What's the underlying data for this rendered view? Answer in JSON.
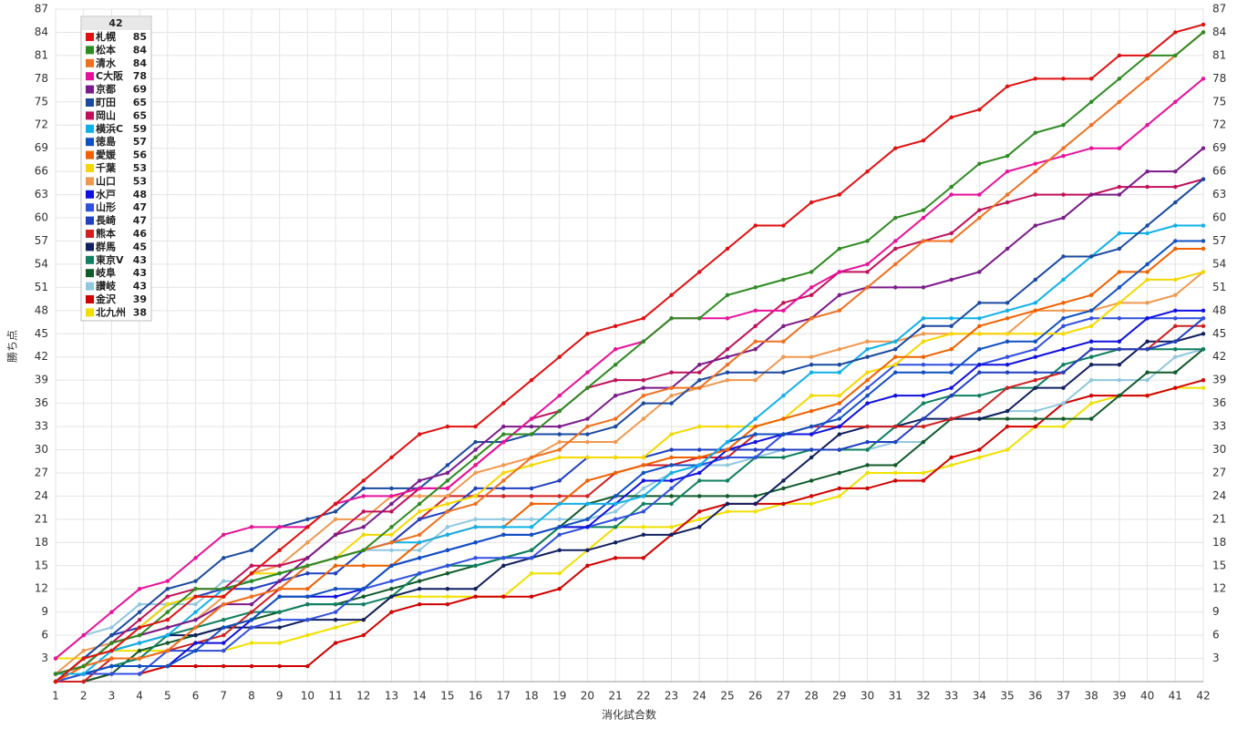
{
  "chart_data": {
    "type": "line",
    "x_label": "消化試合数",
    "y_label": "勝ち点",
    "legend_title": "42",
    "x": [
      1,
      2,
      3,
      4,
      5,
      6,
      7,
      8,
      9,
      10,
      11,
      12,
      13,
      14,
      15,
      16,
      17,
      18,
      19,
      20,
      21,
      22,
      23,
      24,
      25,
      26,
      27,
      28,
      29,
      30,
      31,
      32,
      33,
      34,
      35,
      36,
      37,
      38,
      39,
      40,
      41,
      42
    ],
    "xlim": [
      1,
      42
    ],
    "xticks": [
      1,
      2,
      3,
      4,
      5,
      6,
      7,
      8,
      9,
      10,
      11,
      12,
      13,
      14,
      15,
      16,
      17,
      18,
      19,
      20,
      21,
      22,
      23,
      24,
      25,
      26,
      27,
      28,
      29,
      30,
      31,
      32,
      33,
      34,
      35,
      36,
      37,
      38,
      39,
      40,
      41,
      42
    ],
    "ylim": [
      0,
      87
    ],
    "yticks": [
      3,
      6,
      9,
      12,
      15,
      18,
      21,
      24,
      27,
      30,
      33,
      36,
      39,
      42,
      45,
      48,
      51,
      54,
      57,
      60,
      63,
      66,
      69,
      72,
      75,
      78,
      81,
      84,
      87
    ],
    "grid": true,
    "series": [
      {
        "name": "札幌",
        "color": "#e01010",
        "values": [
          0,
          3,
          4,
          7,
          8,
          11,
          11,
          14,
          17,
          20,
          23,
          26,
          29,
          32,
          33,
          33,
          36,
          39,
          42,
          45,
          46,
          47,
          50,
          53,
          56,
          59,
          59,
          62,
          63,
          66,
          69,
          70,
          73,
          74,
          77,
          78,
          78,
          78,
          81,
          81,
          84,
          85
        ]
      },
      {
        "name": "松本",
        "color": "#2e8b22",
        "values": [
          1,
          2,
          5,
          6,
          9,
          12,
          12,
          13,
          14,
          15,
          16,
          17,
          20,
          23,
          26,
          29,
          32,
          32,
          35,
          38,
          41,
          44,
          47,
          47,
          50,
          51,
          52,
          53,
          56,
          57,
          60,
          61,
          64,
          67,
          68,
          71,
          72,
          75,
          78,
          81,
          81,
          84
        ]
      },
      {
        "name": "清水",
        "color": "#f07020",
        "values": [
          1,
          2,
          3,
          3,
          4,
          7,
          10,
          11,
          12,
          15,
          16,
          17,
          18,
          19,
          22,
          23,
          26,
          29,
          30,
          33,
          34,
          37,
          38,
          38,
          41,
          44,
          44,
          47,
          48,
          51,
          54,
          57,
          57,
          60,
          63,
          66,
          69,
          72,
          75,
          78,
          81,
          84
        ]
      },
      {
        "name": "C大阪",
        "color": "#e8109a",
        "values": [
          3,
          6,
          9,
          12,
          13,
          16,
          19,
          20,
          20,
          20,
          23,
          24,
          24,
          25,
          25,
          28,
          31,
          34,
          37,
          40,
          43,
          44,
          47,
          47,
          47,
          48,
          48,
          51,
          53,
          54,
          57,
          60,
          63,
          63,
          66,
          67,
          68,
          69,
          69,
          72,
          75,
          78
        ]
      },
      {
        "name": "京都",
        "color": "#7b1a8a",
        "values": [
          1,
          2,
          5,
          6,
          7,
          8,
          10,
          10,
          13,
          16,
          19,
          20,
          23,
          26,
          27,
          30,
          33,
          33,
          33,
          34,
          37,
          38,
          38,
          41,
          42,
          43,
          46,
          47,
          50,
          51,
          51,
          51,
          52,
          53,
          56,
          59,
          60,
          63,
          63,
          66,
          66,
          69
        ]
      },
      {
        "name": "町田",
        "color": "#1a4aa0",
        "values": [
          0,
          3,
          6,
          9,
          12,
          13,
          16,
          17,
          20,
          21,
          22,
          25,
          25,
          25,
          28,
          31,
          31,
          32,
          32,
          32,
          33,
          36,
          36,
          39,
          40,
          40,
          40,
          41,
          41,
          42,
          43,
          46,
          46,
          49,
          49,
          52,
          55,
          55,
          56,
          59,
          62,
          65
        ]
      },
      {
        "name": "岡山",
        "color": "#c0105a",
        "values": [
          1,
          2,
          5,
          8,
          11,
          12,
          12,
          15,
          15,
          16,
          19,
          22,
          22,
          25,
          25,
          28,
          31,
          34,
          35,
          38,
          39,
          39,
          40,
          40,
          43,
          46,
          49,
          50,
          53,
          53,
          56,
          57,
          58,
          61,
          62,
          63,
          63,
          63,
          64,
          64,
          64,
          65
        ]
      },
      {
        "name": "横浜C",
        "color": "#10b0e8",
        "values": [
          1,
          1,
          4,
          5,
          6,
          9,
          12,
          13,
          14,
          15,
          16,
          17,
          18,
          18,
          19,
          20,
          20,
          20,
          23,
          23,
          23,
          24,
          27,
          28,
          31,
          34,
          37,
          40,
          40,
          43,
          44,
          47,
          47,
          47,
          48,
          49,
          52,
          55,
          58,
          58,
          59,
          59
        ]
      },
      {
        "name": "徳島",
        "color": "#1050c0",
        "values": [
          1,
          1,
          2,
          2,
          2,
          4,
          7,
          8,
          11,
          11,
          12,
          12,
          15,
          16,
          17,
          18,
          19,
          19,
          20,
          21,
          24,
          27,
          28,
          28,
          31,
          32,
          32,
          33,
          34,
          37,
          40,
          40,
          40,
          43,
          44,
          44,
          47,
          48,
          51,
          54,
          57,
          57
        ]
      },
      {
        "name": "愛媛",
        "color": "#f06000",
        "values": [
          0,
          2,
          3,
          3,
          4,
          7,
          10,
          11,
          12,
          12,
          15,
          15,
          15,
          18,
          19,
          20,
          20,
          23,
          23,
          26,
          27,
          28,
          29,
          29,
          30,
          33,
          34,
          35,
          36,
          39,
          42,
          42,
          43,
          46,
          47,
          48,
          49,
          50,
          53,
          53,
          56,
          56
        ]
      },
      {
        "name": "千葉",
        "color": "#f5d800",
        "values": [
          0,
          3,
          4,
          7,
          10,
          11,
          11,
          14,
          14,
          15,
          16,
          19,
          19,
          22,
          23,
          24,
          27,
          28,
          29,
          29,
          29,
          29,
          32,
          33,
          33,
          33,
          34,
          37,
          37,
          40,
          41,
          44,
          45,
          45,
          45,
          45,
          45,
          46,
          49,
          52,
          52,
          53
        ]
      },
      {
        "name": "山口",
        "color": "#f09850",
        "values": [
          1,
          4,
          5,
          6,
          7,
          8,
          11,
          14,
          15,
          18,
          21,
          21,
          24,
          24,
          24,
          27,
          28,
          29,
          31,
          31,
          31,
          34,
          37,
          38,
          39,
          39,
          42,
          42,
          43,
          44,
          44,
          45,
          45,
          45,
          45,
          48,
          48,
          48,
          49,
          49,
          50,
          53
        ]
      },
      {
        "name": "水戸",
        "color": "#1010e0",
        "values": [
          1,
          1,
          2,
          2,
          2,
          5,
          5,
          8,
          11,
          11,
          11,
          12,
          15,
          16,
          17,
          18,
          19,
          19,
          20,
          20,
          23,
          26,
          26,
          27,
          30,
          31,
          32,
          32,
          33,
          36,
          37,
          37,
          38,
          41,
          41,
          42,
          43,
          44,
          44,
          47,
          48,
          48
        ]
      },
      {
        "name": "山形",
        "color": "#3050e0",
        "values": [
          0,
          1,
          1,
          1,
          4,
          4,
          4,
          7,
          8,
          8,
          9,
          12,
          13,
          14,
          15,
          16,
          16,
          16,
          19,
          20,
          21,
          22,
          25,
          28,
          29,
          29,
          32,
          32,
          35,
          38,
          41,
          41,
          41,
          41,
          42,
          43,
          46,
          47,
          47,
          47,
          47,
          47
        ]
      },
      {
        "name": "長崎",
        "color": "#2040c0",
        "values": [
          0,
          3,
          6,
          7,
          10,
          11,
          12,
          12,
          13,
          14,
          14,
          17,
          18,
          21,
          22,
          25,
          25,
          25,
          26,
          29,
          29,
          29,
          30,
          30,
          30,
          30,
          30,
          30,
          30,
          31,
          31,
          34,
          37,
          40,
          40,
          40,
          40,
          43,
          43,
          43,
          44,
          47
        ]
      },
      {
        "name": "熊本",
        "color": "#d02020",
        "values": [
          0,
          0,
          3,
          3,
          4,
          5,
          6,
          9,
          12,
          15,
          16,
          17,
          18,
          21,
          24,
          24,
          24,
          24,
          24,
          24,
          27,
          28,
          28,
          29,
          29,
          32,
          32,
          33,
          33,
          33,
          33,
          33,
          34,
          35,
          38,
          39,
          40,
          43,
          43,
          43,
          46,
          46
        ]
      },
      {
        "name": "群馬",
        "color": "#102060",
        "values": [
          0,
          3,
          4,
          5,
          6,
          6,
          7,
          7,
          7,
          8,
          8,
          8,
          11,
          12,
          12,
          12,
          15,
          16,
          17,
          17,
          18,
          19,
          19,
          20,
          23,
          23,
          26,
          29,
          32,
          33,
          33,
          34,
          34,
          34,
          35,
          38,
          38,
          41,
          41,
          44,
          44,
          45
        ]
      },
      {
        "name": "東京V",
        "color": "#108060",
        "values": [
          0,
          1,
          2,
          3,
          6,
          7,
          8,
          9,
          9,
          10,
          10,
          10,
          11,
          14,
          15,
          15,
          16,
          17,
          20,
          20,
          20,
          23,
          23,
          26,
          26,
          29,
          29,
          30,
          30,
          30,
          33,
          36,
          37,
          37,
          38,
          38,
          41,
          42,
          43,
          43,
          43,
          43
        ]
      },
      {
        "name": "岐阜",
        "color": "#105a2a",
        "values": [
          0,
          0,
          1,
          4,
          5,
          6,
          7,
          8,
          9,
          10,
          10,
          11,
          12,
          13,
          14,
          15,
          16,
          17,
          20,
          23,
          24,
          24,
          24,
          24,
          24,
          24,
          25,
          26,
          27,
          28,
          28,
          31,
          34,
          34,
          34,
          34,
          34,
          34,
          37,
          40,
          40,
          43
        ]
      },
      {
        "name": "讃岐",
        "color": "#90c8e0",
        "values": [
          3,
          6,
          7,
          10,
          10,
          10,
          13,
          13,
          14,
          15,
          16,
          17,
          17,
          17,
          20,
          21,
          21,
          21,
          21,
          21,
          22,
          25,
          27,
          28,
          28,
          29,
          30,
          30,
          30,
          30,
          31,
          31,
          34,
          34,
          35,
          35,
          36,
          39,
          39,
          39,
          42,
          43
        ]
      },
      {
        "name": "金沢",
        "color": "#d00000",
        "values": [
          0,
          0,
          1,
          1,
          2,
          2,
          2,
          2,
          2,
          2,
          5,
          6,
          9,
          10,
          10,
          11,
          11,
          11,
          12,
          15,
          16,
          16,
          19,
          22,
          23,
          23,
          23,
          24,
          25,
          25,
          26,
          26,
          29,
          30,
          33,
          33,
          36,
          37,
          37,
          37,
          38,
          39
        ]
      },
      {
        "name": "北九州",
        "color": "#f0e000",
        "values": [
          3,
          3,
          4,
          4,
          4,
          4,
          4,
          5,
          5,
          6,
          7,
          8,
          11,
          11,
          11,
          11,
          11,
          14,
          14,
          17,
          20,
          20,
          20,
          21,
          22,
          22,
          23,
          23,
          24,
          27,
          27,
          27,
          28,
          29,
          30,
          33,
          33,
          36,
          37,
          37,
          38,
          38
        ]
      }
    ]
  }
}
